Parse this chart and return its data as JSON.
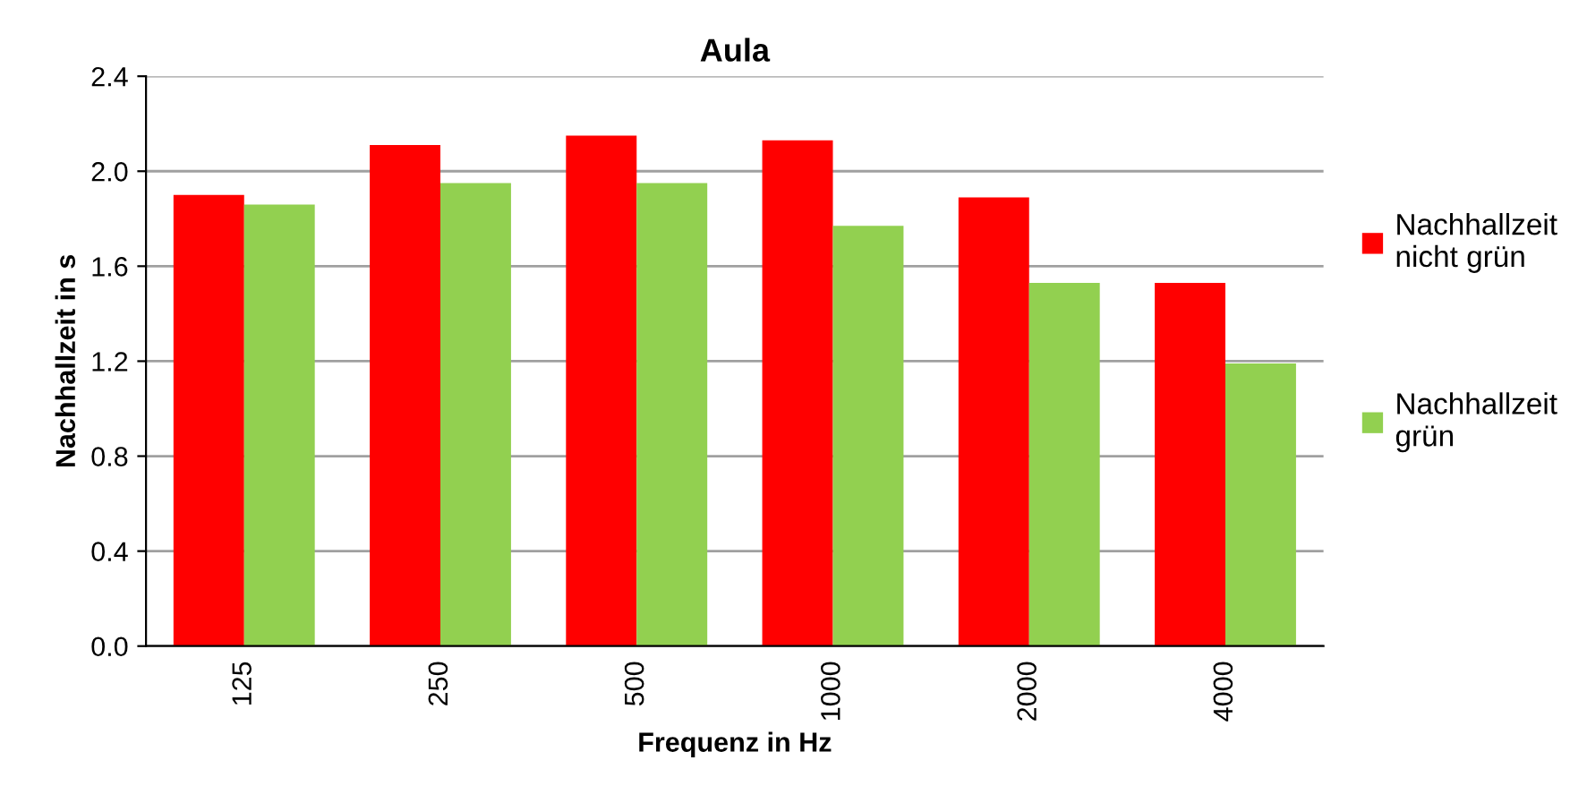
{
  "chart_data": {
    "type": "bar",
    "title": "Aula",
    "xlabel": "Frequenz in Hz",
    "ylabel": "Nachhallzeit in s",
    "categories": [
      "125",
      "250",
      "500",
      "1000",
      "2000",
      "4000"
    ],
    "series": [
      {
        "name": "Nachhallzeit nicht grün",
        "color": "#ff0000",
        "values": [
          1.9,
          2.11,
          2.15,
          2.13,
          1.89,
          1.53
        ]
      },
      {
        "name": "Nachhallzeit grün",
        "color": "#92d050",
        "values": [
          1.86,
          1.95,
          1.95,
          1.77,
          1.53,
          1.19
        ]
      }
    ],
    "ylim": [
      0,
      2.4
    ],
    "yticks": [
      {
        "value": 0,
        "label": "0.0"
      },
      0.4,
      0.8,
      1.2,
      1.6,
      {
        "value": 2.0,
        "label": "2.0"
      },
      2.4
    ],
    "grid": "y",
    "legend": "right"
  }
}
